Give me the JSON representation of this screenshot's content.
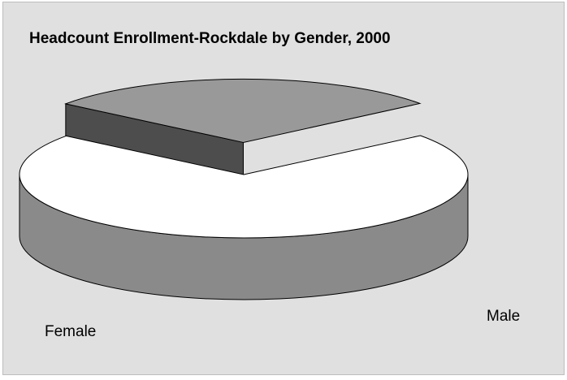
{
  "chart_data": {
    "type": "pie",
    "title": "Headcount Enrollment-Rockdale by Gender, 2000",
    "categories": [
      "Female",
      "Male"
    ],
    "values": [
      0.71,
      0.29
    ],
    "exploded": [
      "Male"
    ],
    "three_d": true,
    "legend": "none",
    "colors": {
      "female_top": "#ffffff",
      "female_side": "#8a8a8a",
      "male_top": "#999999",
      "male_side": "#4d4d4d",
      "background": "#e0e0e0"
    }
  }
}
